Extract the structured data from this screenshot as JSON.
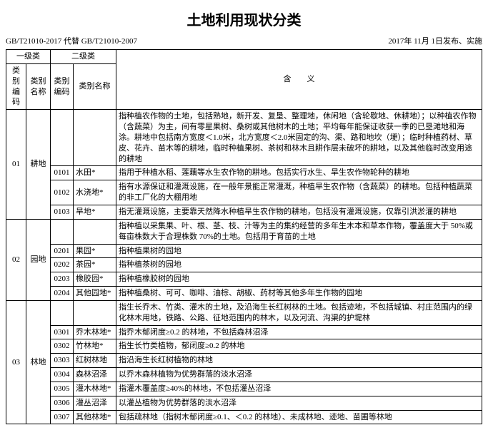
{
  "title": "土地利用现状分类",
  "header": {
    "left": "GB/T21010-2017 代替 GB/T21010-2007",
    "right": "2017年 11月 1日发布、实施"
  },
  "table": {
    "headers": {
      "level1": "一级类",
      "level2": "二级类",
      "code": "类别编码",
      "name": "类别名称",
      "meaning": "含　　义"
    }
  },
  "cats": [
    {
      "l1_code": "01",
      "l1_name": "耕地",
      "l1_desc": "指种植农作物的土地，包括熟地，新开发、复垦、整理地，休闲地（含轮歇地、休耕地）；以种植农作物（含蔬菜）为主，间有零星果树、桑树或其他树木的土地；平均每年能保证收获一季的已垦滩地和海涂。耕地中包括南方宽度＜1.0米，北方宽度＜2.0米固定的沟、渠、路和地坎（埂）；临时种植药材、草皮、花卉、苗木等的耕地，临时种植果树、茶树和林木且耕作层未破坏的耕地，以及其他临时改变用途的耕地",
      "subs": [
        {
          "code": "0101",
          "name": "水田*",
          "desc": "指用于种植水稻、莲藕等水生农作物的耕地。包括实行水生、旱生农作物轮种的耕地"
        },
        {
          "code": "0102",
          "name": "水浇地*",
          "desc": "指有水源保证和灌溉设施，在一般年景能正常灌溉，种植旱生农作物（含蔬菜）的耕地。包括种植蔬菜的非工厂化的大棚用地"
        },
        {
          "code": "0103",
          "name": "旱地*",
          "desc": "指无灌溉设施，主要靠天然降水种植旱生农作物的耕地，包括没有灌溉设施，仅靠引洪淤灌的耕地"
        }
      ]
    },
    {
      "l1_code": "02",
      "l1_name": "园地",
      "l1_desc": "指种植以采集果、叶、根、茎、枝、汁等为主的集约经营的多年生木本和草本作物，覆盖度大于 50%或每亩株数大于合理株数 70%的土地。包括用于育苗的土地",
      "subs": [
        {
          "code": "0201",
          "name": "果园*",
          "desc": "指种植果树的园地"
        },
        {
          "code": "0202",
          "name": "茶园*",
          "desc": "指种植茶树的园地"
        },
        {
          "code": "0203",
          "name": "橡胶园*",
          "desc": "指种植橡胶树的园地"
        },
        {
          "code": "0204",
          "name": "其他园地*",
          "desc": "指种植桑树、可可、咖啡、油棕、胡椒、药材等其他多年生作物的园地"
        }
      ]
    },
    {
      "l1_code": "03",
      "l1_name": "林地",
      "l1_desc": "指生长乔木、竹类、灌木的土地，及沿海生长红树林的土地。包括迹地，不包括城镇、村庄范围内的绿化林木用地，铁路、公路、征地范围内的林木，以及河流、沟渠的护堤林",
      "subs": [
        {
          "code": "0301",
          "name": "乔木林地*",
          "desc": "指乔木郁闭度≥0.2 的林地，不包括森林沼泽"
        },
        {
          "code": "0302",
          "name": "竹林地*",
          "desc": "指生长竹类植物，郁闭度≥0.2 的林地"
        },
        {
          "code": "0303",
          "name": "红树林地",
          "desc": "指沿海生长红树植物的林地"
        },
        {
          "code": "0304",
          "name": "森林沼泽",
          "desc": "以乔木森林植物为优势群落的淡水沼泽"
        },
        {
          "code": "0305",
          "name": "灌木林地*",
          "desc": "指灌木覆盖度≥40%的林地，不包括灌丛沼泽"
        },
        {
          "code": "0306",
          "name": "灌丛沼泽",
          "desc": "以灌丛植物为优势群落的淡水沼泽"
        },
        {
          "code": "0307",
          "name": "其他林地*",
          "desc": "包括疏林地（指树木郁闭度≥0.1、＜0.2 的林地）、未成林地、迹地、苗圃等林地"
        }
      ]
    }
  ]
}
